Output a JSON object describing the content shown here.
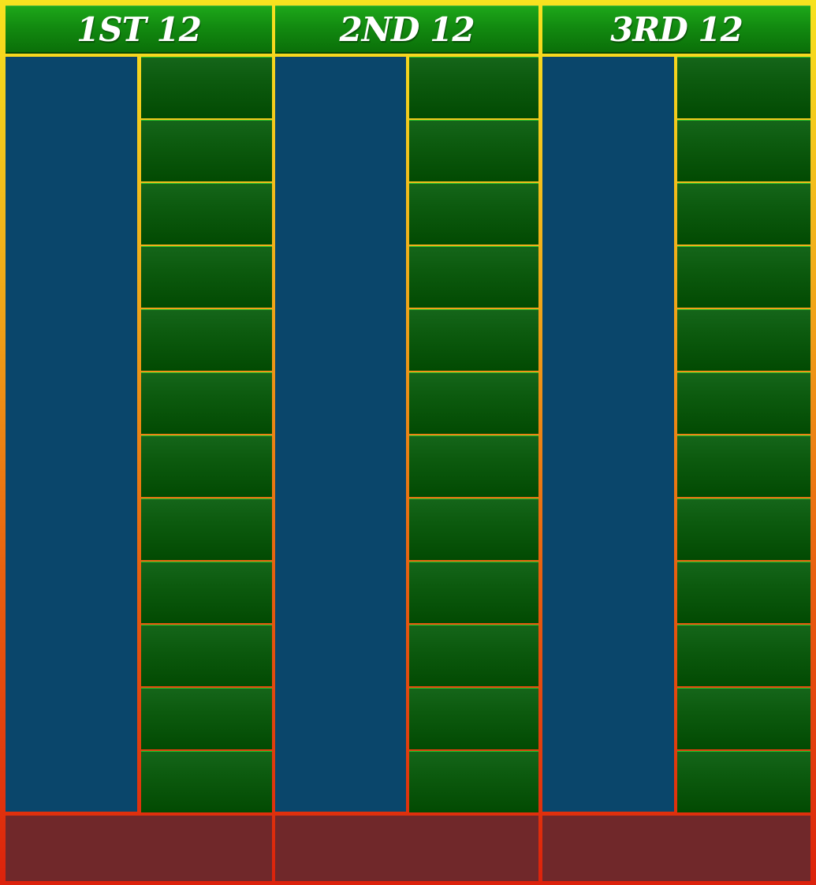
{
  "dozens": [
    {
      "label": "1ST 12",
      "bet_cells": 12
    },
    {
      "label": "2ND 12",
      "bet_cells": 12
    },
    {
      "label": "3RD 12",
      "bet_cells": 12
    }
  ],
  "colors": {
    "frame_top": "#f7e21f",
    "frame_bottom": "#dc220c",
    "header_green": "#128a10",
    "blue_column": "#0a466b",
    "bet_cell_green": "#0c5a0e",
    "footer_maroon": "#70282a"
  }
}
